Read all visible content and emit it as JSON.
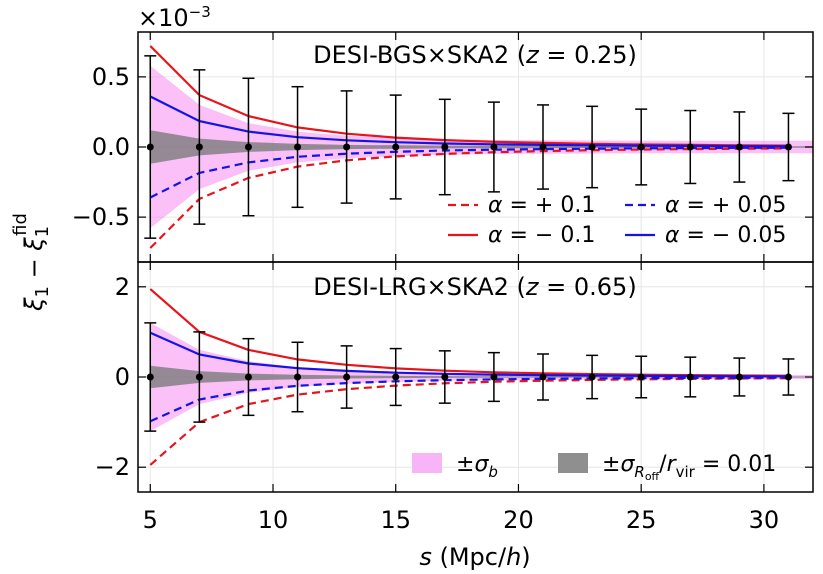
{
  "figure": {
    "ylabel": "ξ1 − ξ1 fid",
    "xlabel": "s (Mpc/h)",
    "x_ticks": [
      5,
      10,
      15,
      20,
      25,
      30
    ]
  },
  "chart_data": [
    {
      "type": "line",
      "title": "DESI-BGS×SKA2 (z = 0.25)",
      "offset_label": "×10−3",
      "xlim": [
        4.5,
        32
      ],
      "ylim": [
        -0.82,
        0.82
      ],
      "y_ticks": [
        -0.5,
        0.0,
        0.5
      ],
      "y_tick_labels": [
        "−0.5",
        "0.0",
        "0.5"
      ],
      "x": [
        5,
        7,
        9,
        11,
        13,
        15,
        17,
        19,
        21,
        23,
        25,
        27,
        29,
        31
      ],
      "series": [
        {
          "name": "α = + 0.1",
          "color": "#e8141b",
          "dash": true,
          "values": [
            -0.72,
            -0.37,
            -0.22,
            -0.14,
            -0.095,
            -0.067,
            -0.049,
            -0.037,
            -0.029,
            -0.023,
            -0.018,
            -0.015,
            -0.012,
            -0.01
          ]
        },
        {
          "name": "α = − 0.1",
          "color": "#e8141b",
          "dash": false,
          "values": [
            0.72,
            0.37,
            0.22,
            0.14,
            0.095,
            0.067,
            0.049,
            0.037,
            0.029,
            0.023,
            0.018,
            0.015,
            0.012,
            0.01
          ]
        },
        {
          "name": "α = + 0.05",
          "color": "#1414e6",
          "dash": true,
          "values": [
            -0.36,
            -0.185,
            -0.11,
            -0.07,
            -0.048,
            -0.034,
            -0.025,
            -0.019,
            -0.015,
            -0.012,
            -0.009,
            -0.0075,
            -0.006,
            -0.005
          ]
        },
        {
          "name": "α = − 0.05",
          "color": "#1414e6",
          "dash": false,
          "values": [
            0.36,
            0.185,
            0.11,
            0.07,
            0.048,
            0.034,
            0.025,
            0.019,
            0.015,
            0.012,
            0.009,
            0.0075,
            0.006,
            0.005
          ]
        }
      ],
      "sigma_b": [
        0.58,
        0.3,
        0.17,
        0.11,
        0.08,
        0.065,
        0.055,
        0.05,
        0.048,
        0.046,
        0.045,
        0.045,
        0.045,
        0.045
      ],
      "sigma_roff": [
        0.12,
        0.06,
        0.035,
        0.022,
        0.015,
        0.012,
        0.01,
        0.009,
        0.008,
        0.007,
        0.0065,
        0.006,
        0.006,
        0.006
      ],
      "errors": {
        "y": [
          0,
          0,
          0,
          0,
          0,
          0,
          0,
          0,
          0,
          0,
          0,
          0,
          0,
          0
        ],
        "err": [
          0.65,
          0.55,
          0.49,
          0.43,
          0.4,
          0.37,
          0.34,
          0.32,
          0.3,
          0.29,
          0.27,
          0.26,
          0.25,
          0.24
        ]
      },
      "legend": {
        "placement": "lower-right"
      }
    },
    {
      "type": "line",
      "title": "DESI-LRG×SKA2 (z = 0.65)",
      "xlim": [
        4.5,
        32
      ],
      "ylim": [
        -2.55,
        2.55
      ],
      "y_ticks": [
        -2,
        0,
        2
      ],
      "y_tick_labels": [
        "−2",
        "0",
        "2"
      ],
      "x": [
        5,
        7,
        9,
        11,
        13,
        15,
        17,
        19,
        21,
        23,
        25,
        27,
        29,
        31
      ],
      "series": [
        {
          "name": "α = + 0.1",
          "color": "#e8141b",
          "dash": true,
          "values": [
            -1.95,
            -1.0,
            -0.6,
            -0.39,
            -0.27,
            -0.19,
            -0.14,
            -0.105,
            -0.082,
            -0.065,
            -0.052,
            -0.042,
            -0.034,
            -0.028
          ]
        },
        {
          "name": "α = − 0.1",
          "color": "#e8141b",
          "dash": false,
          "values": [
            1.95,
            1.0,
            0.6,
            0.39,
            0.27,
            0.19,
            0.14,
            0.105,
            0.082,
            0.065,
            0.052,
            0.042,
            0.034,
            0.028
          ]
        },
        {
          "name": "α = + 0.05",
          "color": "#1414e6",
          "dash": true,
          "values": [
            -0.98,
            -0.5,
            -0.3,
            -0.195,
            -0.135,
            -0.095,
            -0.07,
            -0.053,
            -0.041,
            -0.033,
            -0.026,
            -0.021,
            -0.017,
            -0.014
          ]
        },
        {
          "name": "α = − 0.05",
          "color": "#1414e6",
          "dash": false,
          "values": [
            0.98,
            0.5,
            0.3,
            0.195,
            0.135,
            0.095,
            0.07,
            0.053,
            0.041,
            0.033,
            0.026,
            0.021,
            0.017,
            0.014
          ]
        }
      ],
      "sigma_b": [
        1.2,
        0.6,
        0.35,
        0.22,
        0.15,
        0.11,
        0.085,
        0.07,
        0.06,
        0.055,
        0.05,
        0.048,
        0.046,
        0.045
      ],
      "sigma_roff": [
        0.25,
        0.13,
        0.075,
        0.048,
        0.033,
        0.025,
        0.02,
        0.016,
        0.014,
        0.012,
        0.011,
        0.01,
        0.01,
        0.01
      ],
      "errors": {
        "y": [
          0,
          0,
          0,
          0,
          0,
          0,
          0,
          0,
          0,
          0,
          0,
          0,
          0,
          0
        ],
        "err": [
          1.2,
          1.0,
          0.85,
          0.77,
          0.69,
          0.63,
          0.58,
          0.54,
          0.51,
          0.48,
          0.46,
          0.44,
          0.42,
          0.4
        ]
      },
      "legend": {
        "placement": "lower-right"
      },
      "band_legend": [
        {
          "label": "±σb",
          "color": "#f7b5f7"
        },
        {
          "label": "±σ R_off / r_vir = 0.01",
          "color": "#8f8f8f"
        }
      ]
    }
  ]
}
